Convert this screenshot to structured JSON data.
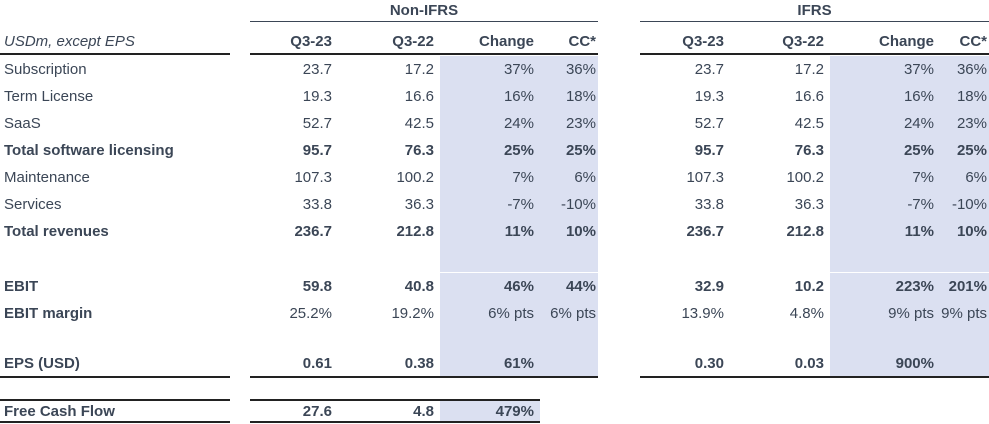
{
  "groups": {
    "non_ifrs": "Non-IFRS",
    "ifrs": "IFRS"
  },
  "header": {
    "label": "USDm, except EPS",
    "cols": [
      "Q3-23",
      "Q3-22",
      "Change",
      "CC*",
      "Q3-23",
      "Q3-22",
      "Change",
      "CC*"
    ]
  },
  "rows": [
    {
      "label": "Subscription",
      "bold": false,
      "values": [
        "23.7",
        "17.2",
        "37%",
        "36%",
        "23.7",
        "17.2",
        "37%",
        "36%"
      ]
    },
    {
      "label": "Term License",
      "bold": false,
      "values": [
        "19.3",
        "16.6",
        "16%",
        "18%",
        "19.3",
        "16.6",
        "16%",
        "18%"
      ]
    },
    {
      "label": "SaaS",
      "bold": false,
      "values": [
        "52.7",
        "42.5",
        "24%",
        "23%",
        "52.7",
        "42.5",
        "24%",
        "23%"
      ]
    },
    {
      "label": "Total software licensing",
      "bold": true,
      "values": [
        "95.7",
        "76.3",
        "25%",
        "25%",
        "95.7",
        "76.3",
        "25%",
        "25%"
      ]
    },
    {
      "label": "Maintenance",
      "bold": false,
      "values": [
        "107.3",
        "100.2",
        "7%",
        "6%",
        "107.3",
        "100.2",
        "7%",
        "6%"
      ]
    },
    {
      "label": "Services",
      "bold": false,
      "values": [
        "33.8",
        "36.3",
        "-7%",
        "-10%",
        "33.8",
        "36.3",
        "-7%",
        "-10%"
      ]
    },
    {
      "label": "Total revenues",
      "bold": true,
      "values": [
        "236.7",
        "212.8",
        "11%",
        "10%",
        "236.7",
        "212.8",
        "11%",
        "10%"
      ]
    },
    {
      "blank": true
    },
    {
      "label": "EBIT",
      "bold": true,
      "values": [
        "59.8",
        "40.8",
        "46%",
        "44%",
        "32.9",
        "10.2",
        "223%",
        "201%"
      ]
    },
    {
      "label": "EBIT margin",
      "bold": true,
      "valuesBold": false,
      "values": [
        "25.2%",
        "19.2%",
        "6% pts",
        "6% pts",
        "13.9%",
        "4.8%",
        "9% pts",
        "9% pts"
      ]
    },
    {
      "blank": true
    },
    {
      "label": "EPS (USD)",
      "bold": true,
      "values": [
        "0.61",
        "0.38",
        "61%",
        "",
        "0.30",
        "0.03",
        "900%",
        ""
      ]
    }
  ],
  "fcf": {
    "label": "Free Cash Flow",
    "values": [
      "27.6",
      "4.8",
      "479%"
    ]
  }
}
